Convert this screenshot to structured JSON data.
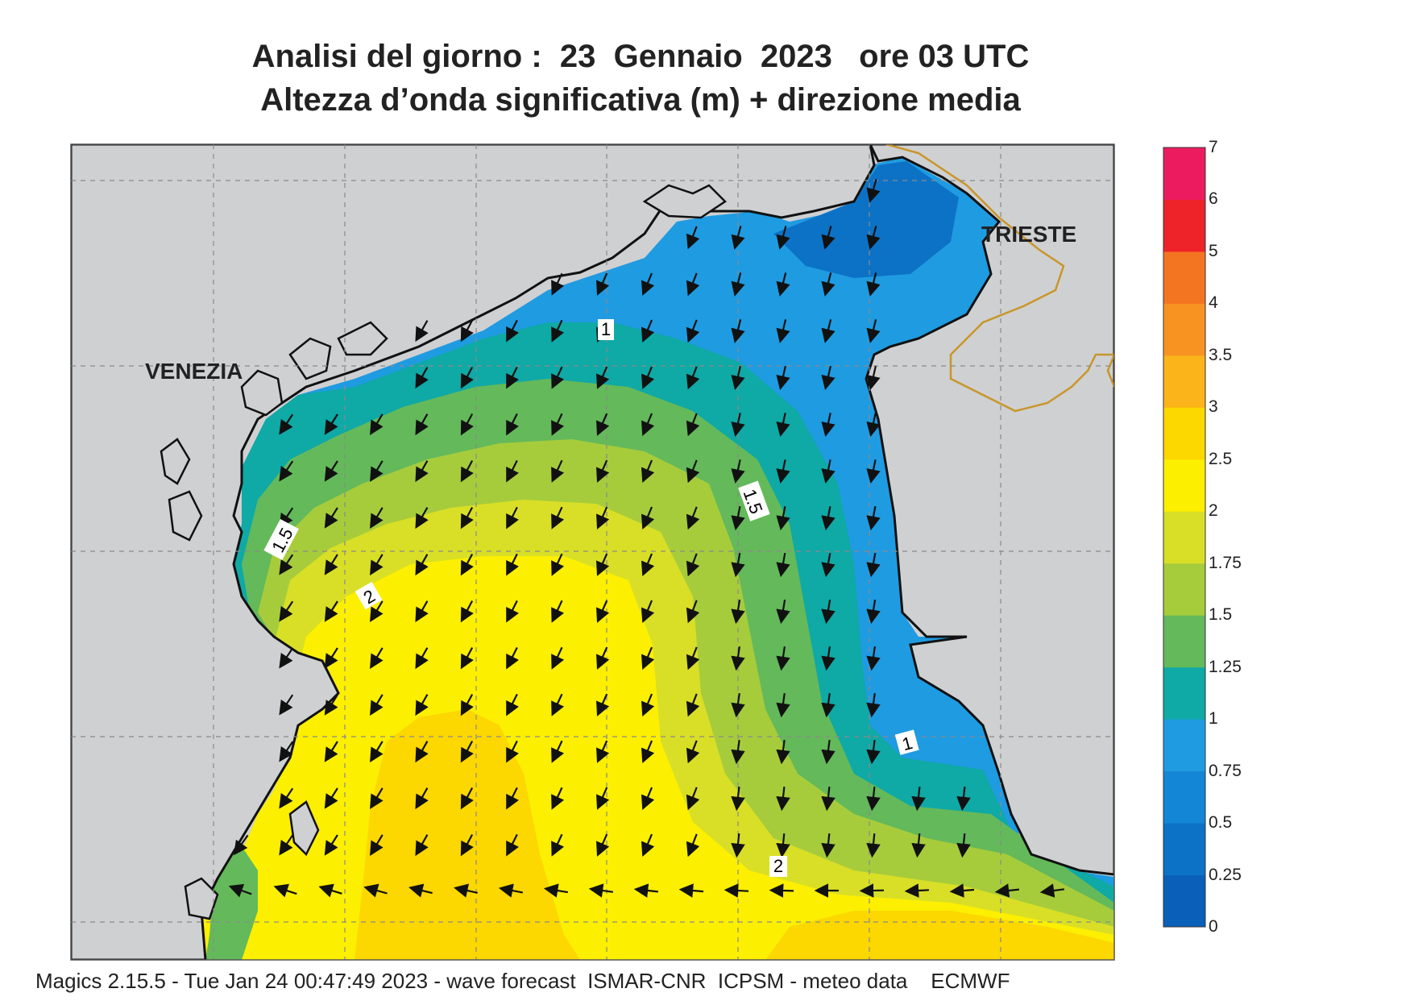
{
  "title": {
    "line1": "Analisi del giorno :  23  Gennaio  2023   ore 03 UTC",
    "line2": "Altezza d’onda significativa (m) + direzione media"
  },
  "places": {
    "venezia": "VENEZIA",
    "trieste": "TRIESTE"
  },
  "contour_labels": {
    "north_1": "1",
    "west_1_5": "1.5",
    "west_2": "2",
    "center_1_5": "1.5",
    "east_1": "1",
    "south_2": "2"
  },
  "legend": {
    "levels": [
      "0",
      "0.25",
      "0.5",
      "0.75",
      "1",
      "1.25",
      "1.5",
      "1.75",
      "2",
      "2.5",
      "3",
      "3.5",
      "4",
      "5",
      "6",
      "7"
    ],
    "colors": [
      "#0a5fb8",
      "#0c72c6",
      "#1486d6",
      "#1f9be2",
      "#0fa9a6",
      "#64b95a",
      "#a6cc3c",
      "#d9df26",
      "#fcef00",
      "#fcd700",
      "#fbb419",
      "#f89322",
      "#f47521",
      "#ee2229",
      "#ec1b60"
    ]
  },
  "colors": {
    "land": "#cfd0d2",
    "sea_low": "#1f9be2",
    "sea_mid": "#0fa9a6",
    "sea_high": "#fcef00",
    "border": "#c8962a"
  },
  "footer": "Magics 2.15.5 - Tue Jan 24 00:47:49 2023 - wave forecast  ISMAR-CNR  ICPSM - meteo data    ECMWF"
}
